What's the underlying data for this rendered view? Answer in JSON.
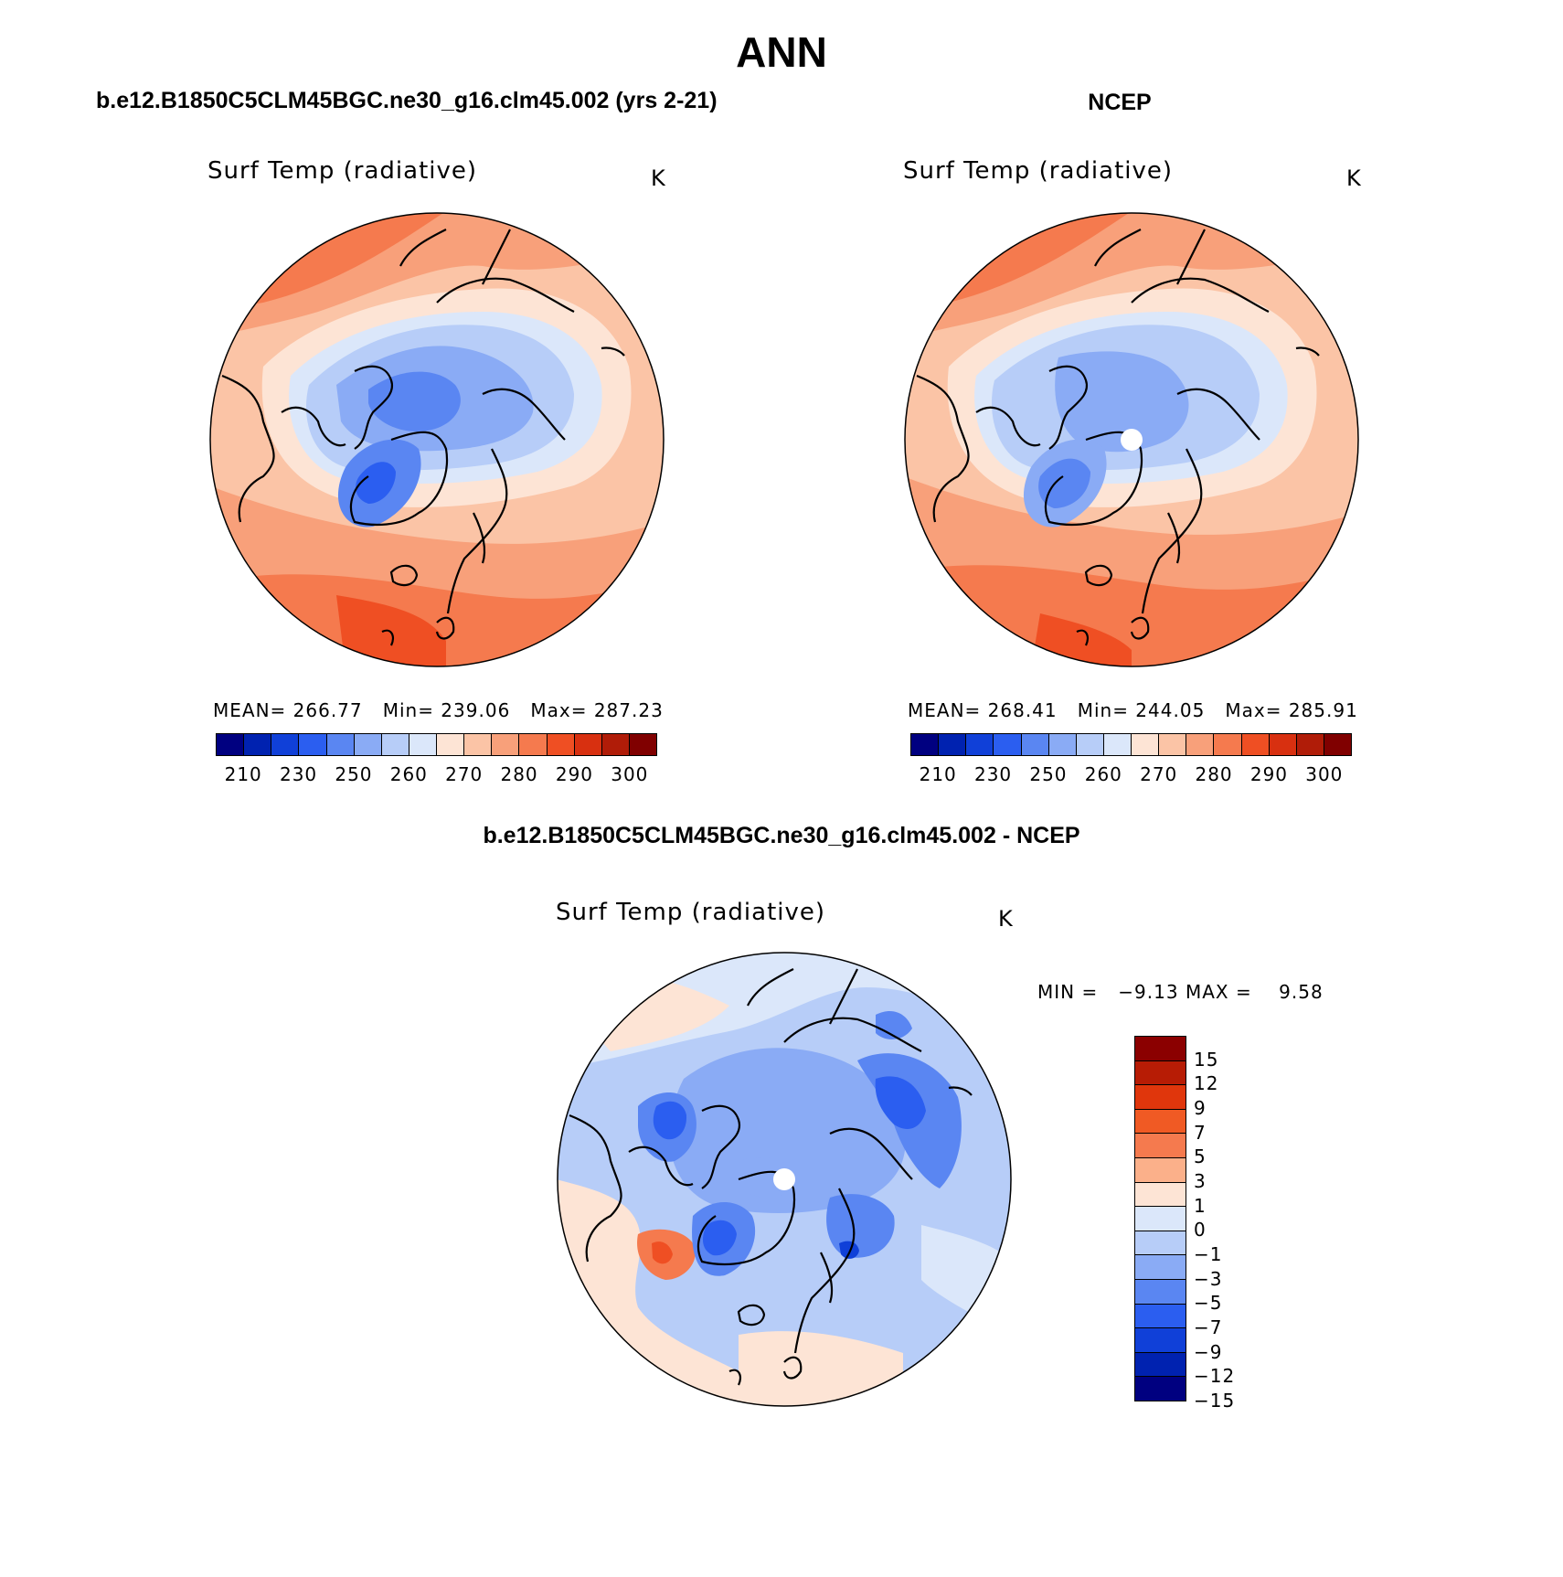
{
  "figure": {
    "title": "ANN",
    "left_header": "b.e12.B1850C5CLM45BGC.ne30_g16.clm45.002 (yrs 2-21)",
    "right_header": "NCEP",
    "diff_header": "b.e12.B1850C5CLM45BGC.ne30_g16.clm45.002 - NCEP"
  },
  "panels": {
    "left": {
      "title": "Surf Temp (radiative)",
      "unit": "K",
      "stats": "MEAN= 266.77   Min= 239.06   Max= 287.23"
    },
    "right": {
      "title": "Surf Temp (radiative)",
      "unit": "K",
      "stats": "MEAN= 268.41   Min= 244.05   Max= 285.91"
    },
    "diff": {
      "title": "Surf Temp (radiative)",
      "unit": "K",
      "stats": "MIN =   −9.13 MAX =    9.58"
    }
  },
  "colorbars": {
    "abs_colors": [
      "#000080",
      "#0022b0",
      "#1040d8",
      "#2b5ef0",
      "#5a86f2",
      "#8aabf5",
      "#b7cdf8",
      "#dbe7fa",
      "#fde4d5",
      "#fbc4a6",
      "#f8a07a",
      "#f57a4e",
      "#ef4f23",
      "#d83010",
      "#b01c08",
      "#800000"
    ],
    "abs_ticks": [
      "210",
      "230",
      "250",
      "260",
      "270",
      "280",
      "290",
      "300"
    ],
    "diff_colors": [
      "#8b0000",
      "#b71c05",
      "#e0360c",
      "#f05a24",
      "#f57a4e",
      "#fbb08a",
      "#fde4d5",
      "#dbe7fa",
      "#b7cdf8",
      "#8aabf5",
      "#5a86f2",
      "#2b5ef0",
      "#1040d8",
      "#0022b0",
      "#000080"
    ],
    "diff_ticks": [
      "15",
      "12",
      "9",
      "7",
      "5",
      "3",
      "1",
      "0",
      "−1",
      "−3",
      "−5",
      "−7",
      "−9",
      "−12",
      "−15"
    ]
  }
}
